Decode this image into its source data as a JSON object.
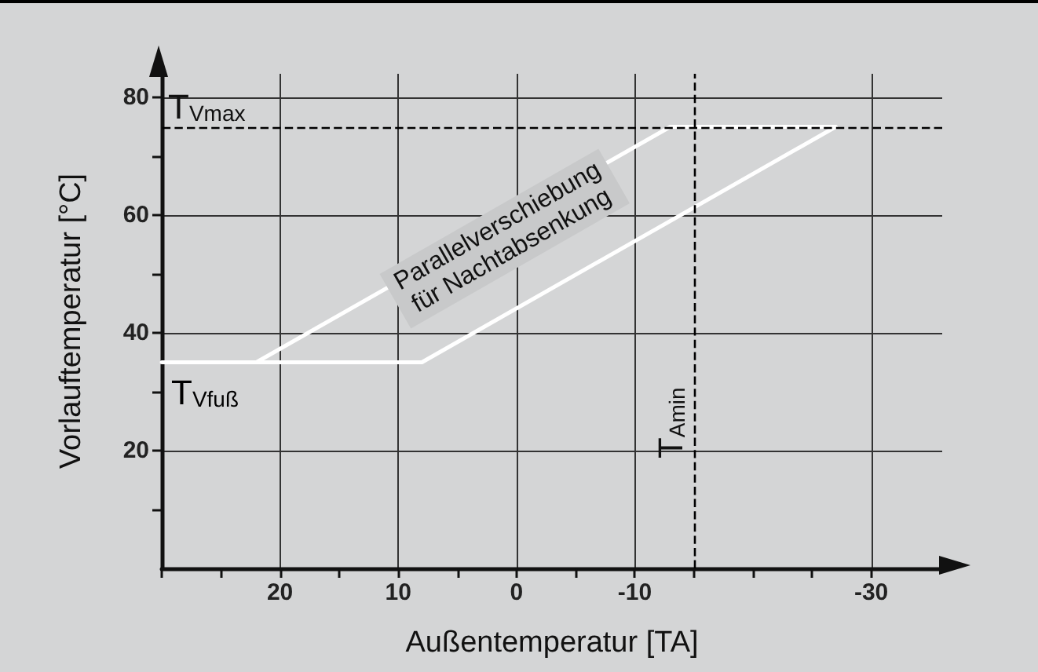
{
  "chart_data": {
    "type": "line",
    "xlabel": "Außentemperatur [TA]",
    "ylabel": "Vorlauftemperatur [°C]",
    "x": [
      30,
      8,
      -27,
      -13,
      22
    ],
    "series": [
      {
        "color": "#ffffff",
        "values": [
          35,
          35,
          75,
          75,
          35
        ]
      }
    ],
    "xlim": [
      30,
      -36
    ],
    "ylim": [
      0,
      84
    ],
    "xticks": [
      {
        "value": 30,
        "label": null
      },
      {
        "value": 25,
        "label": null
      },
      20,
      {
        "value": 15,
        "label": null
      },
      10,
      {
        "value": 5,
        "label": null
      },
      0,
      {
        "value": -5,
        "label": null
      },
      -10,
      {
        "value": -15,
        "label": null
      },
      {
        "value": -20,
        "label": null
      },
      {
        "value": -25,
        "label": null
      },
      -30
    ],
    "yticks": [
      {
        "value": 10,
        "label": null
      },
      20,
      {
        "value": 30,
        "label": null
      },
      40,
      {
        "value": 50,
        "label": null
      },
      60,
      {
        "value": 70,
        "label": null
      },
      80
    ],
    "grid": true,
    "marker": "none",
    "line_style": "solid",
    "ref_lines": [
      {
        "axis": "y",
        "value": 75,
        "label": "T$_{Vmax}$",
        "line_style": "dashed",
        "color": "#000000"
      },
      {
        "axis": "x",
        "value": -15,
        "label": "T$_{Amin}$",
        "line_style": "dashed",
        "color": "#000000"
      }
    ],
    "annotations": [
      {
        "text": "T$_{Vfuß}$",
        "x": 30,
        "y": 35
      },
      "Parallelverschiebung\nfür Nachtabsenkung"
    ]
  }
}
